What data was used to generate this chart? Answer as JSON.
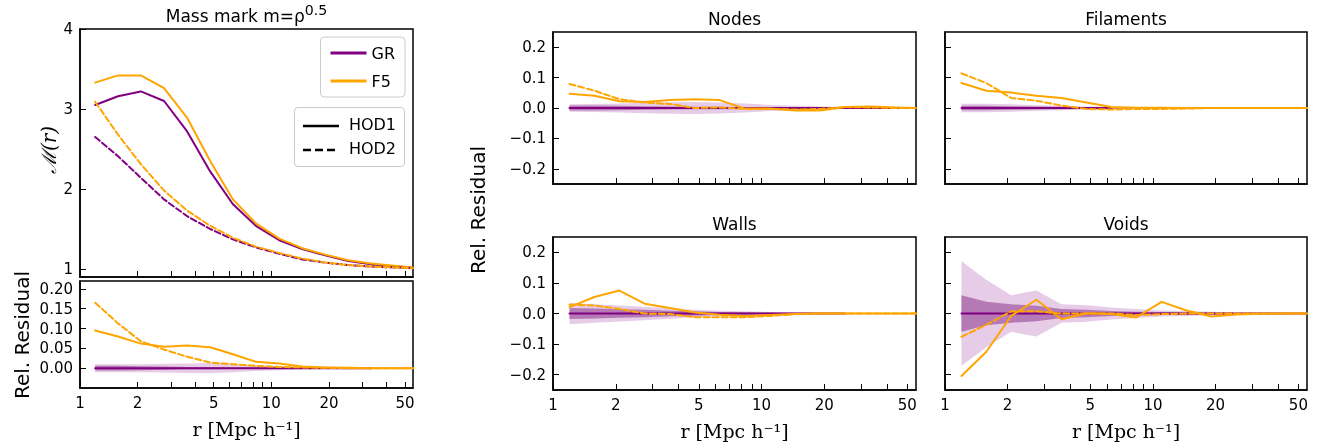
{
  "chart_data": [
    {
      "type": "line",
      "title": "Mass mark m=ρ$^{0.5}$",
      "ylabel": "ℳ(r)",
      "log": "x",
      "marker": "none",
      "legend": "top right",
      "tick_labels": "y",
      "annotations": [
        "HOD1",
        "HOD2"
      ],
      "x": [
        1.2,
        1.58,
        2.08,
        2.75,
        3.63,
        4.79,
        6.3,
        8.3,
        11,
        14.5,
        19.1,
        25.2,
        33.3,
        43.9,
        55
      ],
      "xlim": [
        1,
        55
      ],
      "xticks": [
        {
          "value": 1,
          "label": null
        },
        {
          "value": 2,
          "label": null
        },
        {
          "value": 3,
          "label": null
        },
        {
          "value": 4,
          "label": null
        },
        {
          "value": 5,
          "label": null
        },
        {
          "value": 6,
          "label": null
        },
        {
          "value": 7,
          "label": null
        },
        {
          "value": 8,
          "label": null
        },
        {
          "value": 9,
          "label": null
        },
        {
          "value": 10,
          "label": null
        },
        {
          "value": 20,
          "label": null
        },
        {
          "value": 30,
          "label": null
        },
        {
          "value": 40,
          "label": null
        },
        {
          "value": 50,
          "label": null
        }
      ],
      "ylim": [
        0.9,
        4
      ],
      "yticks": [
        1,
        2,
        3,
        4
      ],
      "series": [
        {
          "name": "GR",
          "color": "#800080",
          "line_style": "solid",
          "values": [
            3.05,
            3.16,
            3.22,
            3.1,
            2.72,
            2.22,
            1.81,
            1.54,
            1.36,
            1.25,
            1.17,
            1.1,
            1.06,
            1.03,
            1.02
          ]
        },
        {
          "name": "F5",
          "color": "#ffa500",
          "line_style": "solid",
          "values": [
            3.33,
            3.42,
            3.42,
            3.26,
            2.89,
            2.35,
            1.87,
            1.57,
            1.38,
            1.26,
            1.18,
            1.11,
            1.07,
            1.04,
            1.02
          ]
        },
        {
          "color": "#800080",
          "line_style": "dashed",
          "values": [
            2.65,
            2.41,
            2.14,
            1.87,
            1.66,
            1.5,
            1.37,
            1.27,
            1.19,
            1.12,
            1.08,
            1.05,
            1.03,
            1.02,
            1.01
          ]
        },
        {
          "color": "#ffa500",
          "line_style": "dashed",
          "values": [
            3.09,
            2.68,
            2.31,
            1.98,
            1.73,
            1.54,
            1.39,
            1.28,
            1.2,
            1.13,
            1.08,
            1.05,
            1.03,
            1.02,
            1.01
          ]
        }
      ]
    },
    {
      "type": "line",
      "xlabel": "r [Mpc h⁻¹]",
      "ylabel": "Rel. Residual",
      "log": "x",
      "marker": "none",
      "x": [
        1.2,
        1.58,
        2.08,
        2.75,
        3.63,
        4.79,
        6.3,
        8.3,
        11,
        14.5,
        19.1,
        25.2,
        33.3,
        43.9,
        55
      ],
      "xlim": [
        1,
        55
      ],
      "xticks": [
        {
          "value": 1,
          "label": "1"
        },
        {
          "value": 2,
          "label": "2"
        },
        {
          "value": 3,
          "label": null
        },
        {
          "value": 4,
          "label": null
        },
        {
          "value": 5,
          "label": "5"
        },
        {
          "value": 6,
          "label": null
        },
        {
          "value": 7,
          "label": null
        },
        {
          "value": 8,
          "label": null
        },
        {
          "value": 9,
          "label": null
        },
        {
          "value": 10,
          "label": "10"
        },
        {
          "value": 20,
          "label": "20"
        },
        {
          "value": 30,
          "label": null
        },
        {
          "value": 40,
          "label": null
        },
        {
          "value": 50,
          "label": "50"
        }
      ],
      "ylim": [
        -0.05,
        0.22
      ],
      "yticks": [
        {
          "value": 0,
          "label": "0.00"
        },
        {
          "value": 0.05,
          "label": "0.05"
        },
        {
          "value": 0.1,
          "label": "0.10"
        },
        {
          "value": 0.15,
          "label": "0.15"
        },
        {
          "value": 0.2,
          "label": "0.20"
        }
      ],
      "series": [
        {
          "color": "#800080",
          "line_style": "solid",
          "values": [
            0,
            0,
            0,
            0,
            0,
            0,
            0,
            0,
            0,
            0,
            0,
            0,
            0,
            null,
            null
          ],
          "lower": [
            -0.01,
            -0.01,
            -0.01,
            -0.011,
            -0.012,
            -0.013,
            -0.01,
            -0.007,
            -0.005,
            -0.003,
            -0.002,
            -0.002,
            -0.001,
            -0.001,
            -0.001
          ],
          "upper": [
            0.01,
            0.01,
            0.01,
            0.011,
            0.012,
            0.013,
            0.01,
            0.007,
            0.005,
            0.003,
            0.002,
            0.002,
            0.001,
            0.001,
            0.001
          ]
        },
        {
          "color": "#ffa500",
          "line_style": "solid",
          "values": [
            0.095,
            0.08,
            0.062,
            0.054,
            0.057,
            0.053,
            0.035,
            0.016,
            0.012,
            0.004,
            0.002,
            0.001,
            0,
            0,
            0
          ]
        },
        {
          "color": "#b57ab5",
          "line_style": "dashed",
          "values": [
            null,
            null,
            null,
            null,
            null,
            null,
            null,
            null,
            null,
            null,
            null,
            null,
            null,
            null,
            null
          ],
          "lower": [
            -0.006,
            -0.006,
            -0.005,
            -0.004,
            -0.003,
            -0.003,
            -0.002,
            -0.002,
            -0.001,
            -0.001,
            -0.001,
            -0.001,
            -0.001,
            -0.001,
            -0.001
          ],
          "upper": [
            0.006,
            0.006,
            0.005,
            0.004,
            0.003,
            0.003,
            0.002,
            0.002,
            0.001,
            0.001,
            0.001,
            0.001,
            0.001,
            0.001,
            0.001
          ]
        },
        {
          "color": "#ffa500",
          "line_style": "dashed",
          "values": [
            0.165,
            0.113,
            0.068,
            0.047,
            0.029,
            0.014,
            0.01,
            0.006,
            0.003,
            0.002,
            0.001,
            0,
            0,
            0,
            0
          ]
        }
      ]
    },
    {
      "type": "line",
      "title": "Nodes",
      "ylabel": "Rel. Residual",
      "log": "x",
      "marker": "none",
      "tick_labels": "y",
      "x": [
        1.2,
        1.58,
        2.08,
        2.75,
        3.63,
        4.79,
        6.3,
        8.3,
        11,
        14.5,
        19.1,
        25.2,
        33.3,
        43.9,
        55
      ],
      "xlim": [
        1,
        55
      ],
      "xticks": [
        {
          "value": 1,
          "label": null
        },
        {
          "value": 2,
          "label": null
        },
        {
          "value": 3,
          "label": null
        },
        {
          "value": 4,
          "label": null
        },
        {
          "value": 5,
          "label": null
        },
        {
          "value": 6,
          "label": null
        },
        {
          "value": 7,
          "label": null
        },
        {
          "value": 8,
          "label": null
        },
        {
          "value": 9,
          "label": null
        },
        {
          "value": 10,
          "label": null
        },
        {
          "value": 20,
          "label": null
        },
        {
          "value": 30,
          "label": null
        },
        {
          "value": 40,
          "label": null
        },
        {
          "value": 50,
          "label": null
        }
      ],
      "ylim": [
        -0.25,
        0.25
      ],
      "yticks": [
        {
          "value": -0.2,
          "label": "−0.2"
        },
        {
          "value": -0.1,
          "label": "−0.1"
        },
        {
          "value": 0,
          "label": "0.0"
        },
        {
          "value": 0.1,
          "label": "0.1"
        },
        {
          "value": 0.2,
          "label": "0.2"
        }
      ],
      "series": [
        {
          "color": "#800080",
          "line_style": "solid",
          "values": [
            0,
            0,
            0,
            0,
            0,
            0,
            0,
            0,
            0,
            0,
            0,
            0,
            0,
            0,
            0
          ],
          "lower": [
            -0.012,
            -0.013,
            -0.015,
            -0.017,
            -0.019,
            -0.02,
            -0.018,
            -0.015,
            -0.01,
            -0.007,
            -0.005,
            -0.003,
            -0.002,
            -0.001,
            -0.001
          ],
          "upper": [
            0.012,
            0.013,
            0.015,
            0.017,
            0.019,
            0.02,
            0.018,
            0.015,
            0.01,
            0.007,
            0.005,
            0.003,
            0.002,
            0.001,
            0.001
          ]
        },
        {
          "color": "#ffa500",
          "line_style": "solid",
          "values": [
            0.047,
            0.04,
            0.022,
            0.02,
            0.026,
            0.029,
            0.026,
            -0.002,
            -0.002,
            -0.008,
            -0.008,
            0.003,
            0.005,
            0.002,
            0
          ]
        },
        {
          "color": "#b57ab5",
          "line_style": "dashed",
          "values": [
            null,
            null,
            null,
            null,
            null,
            null,
            null,
            null,
            null,
            null,
            null,
            null,
            null,
            null,
            null
          ],
          "lower": [
            -0.008,
            -0.008,
            -0.007,
            -0.006,
            -0.005,
            -0.004,
            -0.004,
            -0.003,
            -0.003,
            -0.002,
            -0.002,
            -0.001,
            -0.001,
            -0.001,
            -0.001
          ],
          "upper": [
            0.008,
            0.008,
            0.007,
            0.006,
            0.005,
            0.004,
            0.004,
            0.003,
            0.003,
            0.002,
            0.002,
            0.001,
            0.001,
            0.001,
            0.001
          ]
        },
        {
          "color": "#ffa500",
          "line_style": "dashed",
          "values": [
            0.079,
            0.057,
            0.029,
            0.018,
            0.013,
            0,
            0.002,
            -0.003,
            -0.003,
            -0.005,
            -0.003,
            0.003,
            0.002,
            0,
            0
          ]
        }
      ]
    },
    {
      "type": "line",
      "title": "Filaments",
      "log": "x",
      "marker": "none",
      "tick_labels": false,
      "x": [
        1.2,
        1.58,
        2.08,
        2.75,
        3.63,
        4.79,
        6.3,
        8.3,
        11,
        14.5,
        19.1,
        25.2,
        33.3,
        43.9,
        55
      ],
      "xlim": [
        1,
        55
      ],
      "xticks": [
        {
          "value": 1,
          "label": null
        },
        {
          "value": 2,
          "label": null
        },
        {
          "value": 3,
          "label": null
        },
        {
          "value": 4,
          "label": null
        },
        {
          "value": 5,
          "label": null
        },
        {
          "value": 6,
          "label": null
        },
        {
          "value": 7,
          "label": null
        },
        {
          "value": 8,
          "label": null
        },
        {
          "value": 9,
          "label": null
        },
        {
          "value": 10,
          "label": null
        },
        {
          "value": 20,
          "label": null
        },
        {
          "value": 30,
          "label": null
        },
        {
          "value": 40,
          "label": null
        },
        {
          "value": 50,
          "label": null
        }
      ],
      "ylim": [
        -0.25,
        0.25
      ],
      "yticks": [
        {
          "value": -0.2,
          "label": null
        },
        {
          "value": -0.1,
          "label": null
        },
        {
          "value": 0,
          "label": null
        },
        {
          "value": 0.1,
          "label": null
        },
        {
          "value": 0.2,
          "label": null
        }
      ],
      "series": [
        {
          "color": "#800080",
          "line_style": "solid",
          "values": [
            0,
            0,
            0,
            0,
            0,
            0,
            0,
            null,
            null,
            null,
            null,
            null,
            null,
            null,
            null
          ],
          "lower": [
            -0.014,
            -0.014,
            -0.012,
            -0.009,
            -0.007,
            -0.005,
            -0.004,
            -0.003,
            -0.002,
            -0.002,
            -0.001,
            -0.001,
            -0.001,
            -0.001,
            -0.001
          ],
          "upper": [
            0.014,
            0.014,
            0.012,
            0.009,
            0.007,
            0.005,
            0.004,
            0.003,
            0.002,
            0.002,
            0.001,
            0.001,
            0.001,
            0.001,
            0.001
          ]
        },
        {
          "color": "#ffa500",
          "line_style": "solid",
          "values": [
            0.082,
            0.057,
            0.051,
            0.04,
            0.033,
            0.018,
            0.003,
            0.001,
            0.001,
            0,
            0,
            0,
            0,
            0,
            0
          ]
        },
        {
          "color": "#b57ab5",
          "line_style": "dashed",
          "values": [
            null,
            null,
            null,
            null,
            null,
            null,
            null,
            null,
            null,
            null,
            null,
            null,
            null,
            null,
            null
          ],
          "lower": [
            -0.007,
            -0.007,
            -0.006,
            -0.005,
            -0.004,
            -0.003,
            -0.003,
            -0.002,
            -0.002,
            -0.001,
            -0.001,
            -0.001,
            -0.001,
            -0.001,
            -0.001
          ],
          "upper": [
            0.007,
            0.007,
            0.006,
            0.005,
            0.004,
            0.003,
            0.003,
            0.002,
            0.002,
            0.001,
            0.001,
            0.001,
            0.001,
            0.001,
            0.001
          ]
        },
        {
          "color": "#ffa500",
          "line_style": "dashed",
          "values": [
            0.114,
            0.082,
            0.033,
            0.024,
            0.008,
            -0.003,
            -0.005,
            -0.003,
            -0.003,
            -0.002,
            0,
            0,
            0,
            0,
            0
          ]
        }
      ]
    },
    {
      "type": "line",
      "title": "Walls",
      "xlabel": "r [Mpc h⁻¹]",
      "log": "x",
      "marker": "none",
      "x": [
        1.2,
        1.58,
        2.08,
        2.75,
        3.63,
        4.79,
        6.3,
        8.3,
        11,
        14.5,
        19.1,
        25.2,
        33.3,
        43.9,
        55
      ],
      "xlim": [
        1,
        55
      ],
      "xticks": [
        {
          "value": 1,
          "label": "1"
        },
        {
          "value": 2,
          "label": "2"
        },
        {
          "value": 3,
          "label": null
        },
        {
          "value": 4,
          "label": null
        },
        {
          "value": 5,
          "label": "5"
        },
        {
          "value": 6,
          "label": null
        },
        {
          "value": 7,
          "label": null
        },
        {
          "value": 8,
          "label": null
        },
        {
          "value": 9,
          "label": null
        },
        {
          "value": 10,
          "label": "10"
        },
        {
          "value": 20,
          "label": "20"
        },
        {
          "value": 30,
          "label": null
        },
        {
          "value": 40,
          "label": null
        },
        {
          "value": 50,
          "label": "50"
        }
      ],
      "ylim": [
        -0.25,
        0.25
      ],
      "yticks": [
        {
          "value": -0.2,
          "label": "−0.2"
        },
        {
          "value": -0.1,
          "label": "−0.1"
        },
        {
          "value": 0,
          "label": "0.0"
        },
        {
          "value": 0.1,
          "label": "0.1"
        },
        {
          "value": 0.2,
          "label": "0.2"
        }
      ],
      "series": [
        {
          "color": "#800080",
          "line_style": "solid",
          "values": [
            0,
            0,
            0,
            0,
            0,
            0,
            0,
            0,
            0,
            0,
            0,
            0,
            null,
            null,
            null
          ],
          "lower": [
            -0.035,
            -0.03,
            -0.026,
            -0.022,
            -0.017,
            -0.012,
            -0.009,
            -0.007,
            -0.005,
            -0.004,
            -0.003,
            -0.002,
            -0.002,
            -0.001,
            -0.001
          ],
          "upper": [
            0.035,
            0.03,
            0.026,
            0.022,
            0.017,
            0.012,
            0.009,
            0.007,
            0.005,
            0.004,
            0.003,
            0.002,
            0.002,
            0.001,
            0.001
          ]
        },
        {
          "color": "#ffa500",
          "line_style": "solid",
          "values": [
            0.021,
            0.054,
            0.075,
            0.032,
            0.018,
            0.003,
            -0.004,
            -0.008,
            -0.005,
            -0.002,
            0,
            0,
            0,
            0,
            0
          ]
        },
        {
          "color": "#b57ab5",
          "line_style": "dashed",
          "values": [
            null,
            null,
            null,
            null,
            null,
            null,
            null,
            null,
            null,
            null,
            null,
            null,
            null,
            null,
            null
          ],
          "lower": [
            -0.018,
            -0.016,
            -0.014,
            -0.012,
            -0.009,
            -0.007,
            -0.005,
            -0.004,
            -0.003,
            -0.002,
            -0.002,
            -0.001,
            -0.001,
            -0.001,
            -0.001
          ],
          "upper": [
            0.018,
            0.016,
            0.014,
            0.012,
            0.009,
            0.007,
            0.005,
            0.004,
            0.003,
            0.002,
            0.002,
            0.001,
            0.001,
            0.001,
            0.001
          ]
        },
        {
          "color": "#ffa500",
          "line_style": "dashed",
          "values": [
            0.029,
            0.026,
            0.015,
            0,
            -0.002,
            -0.012,
            -0.012,
            -0.012,
            -0.008,
            -0.002,
            0,
            0,
            0,
            0,
            0
          ]
        }
      ]
    },
    {
      "type": "line",
      "title": "Voids",
      "xlabel": "r [Mpc h⁻¹]",
      "log": "x",
      "marker": "none",
      "tick_labels": "x",
      "x": [
        1.2,
        1.58,
        2.08,
        2.75,
        3.63,
        4.79,
        6.3,
        8.3,
        11,
        14.5,
        19.1,
        25.2,
        33.3,
        43.9,
        55
      ],
      "xlim": [
        1,
        55
      ],
      "xticks": [
        {
          "value": 1,
          "label": "1"
        },
        {
          "value": 2,
          "label": "2"
        },
        {
          "value": 3,
          "label": null
        },
        {
          "value": 4,
          "label": null
        },
        {
          "value": 5,
          "label": "5"
        },
        {
          "value": 6,
          "label": null
        },
        {
          "value": 7,
          "label": null
        },
        {
          "value": 8,
          "label": null
        },
        {
          "value": 9,
          "label": null
        },
        {
          "value": 10,
          "label": "10"
        },
        {
          "value": 20,
          "label": "20"
        },
        {
          "value": 30,
          "label": null
        },
        {
          "value": 40,
          "label": null
        },
        {
          "value": 50,
          "label": "50"
        }
      ],
      "ylim": [
        -0.25,
        0.25
      ],
      "yticks": [
        {
          "value": -0.2,
          "label": null
        },
        {
          "value": -0.1,
          "label": null
        },
        {
          "value": 0,
          "label": null
        },
        {
          "value": 0.1,
          "label": null
        },
        {
          "value": 0.2,
          "label": null
        }
      ],
      "series": [
        {
          "color": "#800080",
          "line_style": "solid",
          "values": [
            0,
            0,
            0,
            0,
            0,
            0,
            0,
            0,
            0,
            0,
            0,
            0,
            0,
            0,
            0
          ],
          "lower": [
            -0.171,
            -0.11,
            -0.06,
            -0.075,
            -0.03,
            -0.027,
            -0.02,
            -0.015,
            -0.01,
            -0.008,
            -0.006,
            -0.004,
            -0.003,
            -0.002,
            -0.001
          ],
          "upper": [
            0.171,
            0.11,
            0.06,
            0.075,
            0.03,
            0.027,
            0.02,
            0.015,
            0.01,
            0.008,
            0.006,
            0.004,
            0.003,
            0.002,
            0.001
          ]
        },
        {
          "color": "#ffa500",
          "line_style": "solid",
          "values": [
            -0.204,
            -0.125,
            -0.008,
            0.045,
            -0.019,
            0.001,
            -0.002,
            -0.013,
            0.038,
            0.01,
            -0.01,
            -0.003,
            -0.001,
            0,
            0
          ]
        },
        {
          "color": "#b57ab5",
          "line_style": "dashed",
          "values": [
            null,
            null,
            null,
            null,
            null,
            null,
            null,
            null,
            null,
            null,
            null,
            null,
            null,
            null,
            null
          ],
          "lower": [
            -0.06,
            -0.038,
            -0.03,
            -0.025,
            -0.015,
            -0.012,
            -0.008,
            -0.006,
            -0.005,
            -0.004,
            -0.003,
            -0.002,
            -0.002,
            -0.001,
            -0.001
          ],
          "upper": [
            0.06,
            0.038,
            0.03,
            0.025,
            0.015,
            0.012,
            0.008,
            0.006,
            0.005,
            0.004,
            0.003,
            0.002,
            0.002,
            0.001,
            0.001
          ]
        },
        {
          "color": "#ffa500",
          "line_style": "dashed",
          "values": [
            -0.076,
            -0.037,
            0.007,
            0.007,
            0,
            0,
            0,
            -0.005,
            -0.002,
            0,
            0,
            0,
            0,
            0,
            0
          ]
        }
      ]
    }
  ]
}
